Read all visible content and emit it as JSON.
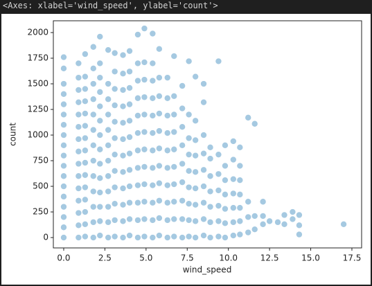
{
  "output_text": "<Axes: xlabel='wind_speed', ylabel='count'>",
  "chart_data": {
    "type": "scatter",
    "x_label": "wind_speed",
    "y_label": "count",
    "color": "#1f77b4",
    "xlim": [
      -0.63,
      18.09
    ],
    "ylim": [
      -101,
      2115
    ],
    "xticks": [
      {
        "value": 0,
        "label": "0.0"
      },
      2.5,
      {
        "value": 5,
        "label": "5.0"
      },
      7.5,
      {
        "value": 10,
        "label": "10.0"
      },
      12.5,
      {
        "value": 15,
        "label": "15.0"
      },
      17.5
    ],
    "yticks": [
      0,
      250,
      500,
      750,
      1000,
      1250,
      1500,
      1750,
      2000
    ],
    "x": [
      0,
      0,
      0,
      0,
      0,
      0,
      0,
      0,
      0,
      0,
      0,
      0,
      0,
      0,
      0,
      0,
      0,
      0,
      0.9,
      0.9,
      0.9,
      0.9,
      0.9,
      0.9,
      0.9,
      0.9,
      0.9,
      0.9,
      0.9,
      0.9,
      0.9,
      0.9,
      0.9,
      1.3,
      1.3,
      1.3,
      1.3,
      1.3,
      1.3,
      1.3,
      1.3,
      1.3,
      1.3,
      1.3,
      1.3,
      1.3,
      1.3,
      1.3,
      1.8,
      1.8,
      1.8,
      1.8,
      1.8,
      1.8,
      1.8,
      1.8,
      1.8,
      1.8,
      1.8,
      1.8,
      1.8,
      2.2,
      2.2,
      2.2,
      2.2,
      2.2,
      2.2,
      2.2,
      2.2,
      2.2,
      2.2,
      2.2,
      2.2,
      2.2,
      2.2,
      2.7,
      2.7,
      2.7,
      2.7,
      2.7,
      2.7,
      2.7,
      2.7,
      2.7,
      2.7,
      2.7,
      2.7,
      3.1,
      3.1,
      3.1,
      3.1,
      3.1,
      3.1,
      3.1,
      3.1,
      3.1,
      3.1,
      3.1,
      3.1,
      3.6,
      3.6,
      3.6,
      3.6,
      3.6,
      3.6,
      3.6,
      3.6,
      3.6,
      3.6,
      3.6,
      3.6,
      4.0,
      4.0,
      4.0,
      4.0,
      4.0,
      4.0,
      4.0,
      4.0,
      4.0,
      4.0,
      4.0,
      4.0,
      4.5,
      4.5,
      4.5,
      4.5,
      4.5,
      4.5,
      4.5,
      4.5,
      4.5,
      4.5,
      4.5,
      4.5,
      4.9,
      4.9,
      4.9,
      4.9,
      4.9,
      4.9,
      4.9,
      4.9,
      4.9,
      4.9,
      4.9,
      4.9,
      5.4,
      5.4,
      5.4,
      5.4,
      5.4,
      5.4,
      5.4,
      5.4,
      5.4,
      5.4,
      5.4,
      5.4,
      5.8,
      5.8,
      5.8,
      5.8,
      5.8,
      5.8,
      5.8,
      5.8,
      5.8,
      5.8,
      5.8,
      6.3,
      6.3,
      6.3,
      6.3,
      6.3,
      6.3,
      6.3,
      6.3,
      6.3,
      6.3,
      6.7,
      6.7,
      6.7,
      6.7,
      6.7,
      6.7,
      6.7,
      6.7,
      6.7,
      6.7,
      7.2,
      7.2,
      7.2,
      7.2,
      7.2,
      7.2,
      7.2,
      7.2,
      7.2,
      7.6,
      7.6,
      7.6,
      7.6,
      7.6,
      7.6,
      7.6,
      7.6,
      7.6,
      8.0,
      8.0,
      8.0,
      8.0,
      8.0,
      8.0,
      8.0,
      8.0,
      8.0,
      8.5,
      8.5,
      8.5,
      8.5,
      8.5,
      8.5,
      8.5,
      8.5,
      8.5,
      8.9,
      8.9,
      8.9,
      8.9,
      8.9,
      8.9,
      8.9,
      9.4,
      9.4,
      9.4,
      9.4,
      9.4,
      9.4,
      9.4,
      9.8,
      9.8,
      9.8,
      9.8,
      9.8,
      9.8,
      9.8,
      10.3,
      10.3,
      10.3,
      10.3,
      10.3,
      10.3,
      10.3,
      10.7,
      10.7,
      10.7,
      10.7,
      10.7,
      10.7,
      10.7,
      11.2,
      11.2,
      11.2,
      11.2,
      11.6,
      11.6,
      11.6,
      12.1,
      12.1,
      12.1,
      12.5,
      13.0,
      13.4,
      13.4,
      13.9,
      13.9,
      14.3,
      14.3,
      14.3,
      17.0
    ],
    "values": [
      0,
      100,
      200,
      300,
      400,
      500,
      600,
      700,
      800,
      900,
      1000,
      1100,
      1200,
      1300,
      1400,
      1500,
      1650,
      1760,
      0,
      120,
      240,
      360,
      480,
      600,
      720,
      840,
      960,
      1080,
      1200,
      1320,
      1440,
      1560,
      1700,
      10,
      130,
      250,
      370,
      490,
      610,
      730,
      850,
      970,
      1090,
      1210,
      1330,
      1450,
      1570,
      1790,
      0,
      150,
      300,
      450,
      600,
      750,
      900,
      1050,
      1200,
      1350,
      1500,
      1650,
      1860,
      20,
      160,
      300,
      440,
      580,
      720,
      860,
      1000,
      1140,
      1280,
      1420,
      1560,
      1700,
      1960,
      0,
      150,
      300,
      450,
      600,
      750,
      900,
      1050,
      1200,
      1350,
      1500,
      1830,
      10,
      170,
      330,
      490,
      650,
      810,
      970,
      1130,
      1290,
      1450,
      1620,
      1800,
      0,
      160,
      320,
      480,
      640,
      800,
      960,
      1120,
      1280,
      1440,
      1600,
      1780,
      20,
      180,
      340,
      500,
      660,
      820,
      980,
      1140,
      1300,
      1460,
      1620,
      1820,
      0,
      170,
      340,
      510,
      680,
      850,
      1020,
      1190,
      1360,
      1530,
      1700,
      1980,
      10,
      180,
      350,
      520,
      690,
      860,
      1030,
      1200,
      1370,
      1540,
      1710,
      2040,
      0,
      170,
      340,
      510,
      680,
      850,
      1020,
      1190,
      1360,
      1530,
      1700,
      1990,
      20,
      190,
      360,
      530,
      700,
      870,
      1040,
      1210,
      1380,
      1560,
      1840,
      0,
      170,
      340,
      510,
      680,
      850,
      1020,
      1190,
      1360,
      1560,
      10,
      180,
      350,
      520,
      690,
      860,
      1030,
      1200,
      1380,
      1770,
      0,
      180,
      360,
      540,
      720,
      900,
      1080,
      1260,
      1480,
      10,
      170,
      330,
      490,
      650,
      810,
      970,
      1200,
      1720,
      0,
      160,
      320,
      480,
      640,
      800,
      950,
      1140,
      1570,
      20,
      180,
      340,
      500,
      660,
      820,
      1000,
      1320,
      1500,
      0,
      150,
      300,
      450,
      600,
      770,
      880,
      10,
      160,
      310,
      460,
      620,
      810,
      1720,
      0,
      140,
      280,
      420,
      560,
      700,
      900,
      20,
      150,
      290,
      430,
      570,
      760,
      940,
      30,
      160,
      290,
      420,
      560,
      700,
      880,
      50,
      200,
      350,
      1170,
      80,
      210,
      1110,
      130,
      210,
      350,
      160,
      150,
      130,
      220,
      180,
      250,
      30,
      120,
      220,
      130
    ]
  }
}
